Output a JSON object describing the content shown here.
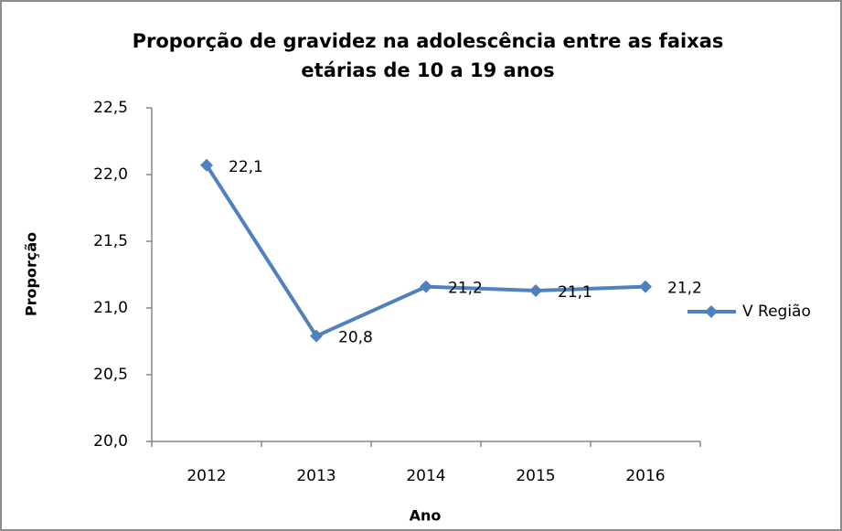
{
  "chart_data": {
    "type": "line",
    "title": [
      "Proporção de gravidez na adolescência entre as faixas",
      "etárias de 10 a 19 anos"
    ],
    "x_label": "Ano",
    "y_label": "Proporção",
    "categories": [
      "2012",
      "2013",
      "2014",
      "2015",
      "2016"
    ],
    "series": [
      {
        "name": "V Região",
        "color": "#4f81bd",
        "values": [
          22.07,
          20.79,
          21.16,
          21.13,
          21.16
        ],
        "value_labels": [
          "22,1",
          "20,8",
          "21,2",
          "21,1",
          "21,2"
        ]
      }
    ],
    "ylim": [
      20.0,
      22.5
    ],
    "yticks": [
      {
        "value": 20.0,
        "label": "20,0"
      },
      {
        "value": 20.5,
        "label": "20,5"
      },
      {
        "value": 21.0,
        "label": "21,0"
      },
      {
        "value": 21.5,
        "label": "21,5"
      },
      {
        "value": 22.0,
        "label": "22,0"
      },
      {
        "value": 22.5,
        "label": "22,5"
      }
    ],
    "legend": "right"
  }
}
